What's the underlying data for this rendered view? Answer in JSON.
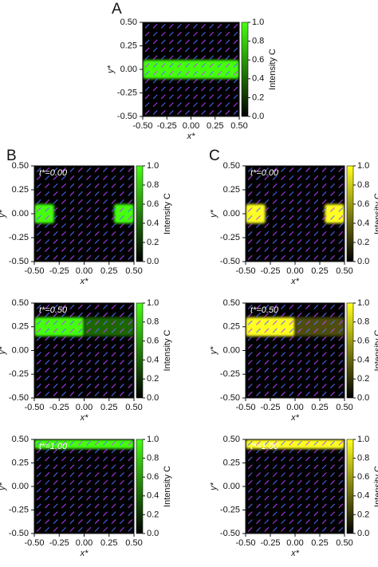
{
  "chart_data": [
    {
      "type": "heatmap",
      "panel_label": "A",
      "xlabel": "x*",
      "ylabel": "y*",
      "colorbar_label": "Intensity C",
      "colormap": [
        "#000000",
        "#44ff10"
      ],
      "xlim": [
        -0.5,
        0.5
      ],
      "ylim": [
        -0.5,
        0.5
      ],
      "clim": [
        0,
        1
      ],
      "xticks": [
        {
          "value": -0.5,
          "label": "-0.50"
        },
        {
          "value": -0.25,
          "label": "-0.25"
        },
        {
          "value": 0,
          "label": "0.00"
        },
        {
          "value": 0.25,
          "label": "0.25"
        },
        {
          "value": 0.5,
          "label": "0.50"
        }
      ],
      "yticks": [
        {
          "value": -0.5,
          "label": "-0.50"
        },
        {
          "value": -0.25,
          "label": "-0.25"
        },
        {
          "value": 0,
          "label": "0.00"
        },
        {
          "value": 0.25,
          "label": "0.25"
        },
        {
          "value": 0.5,
          "label": "0.50"
        }
      ],
      "cticks": [
        {
          "value": 0,
          "label": "0.0"
        },
        {
          "value": 0.2,
          "label": "0.2"
        },
        {
          "value": 0.4,
          "label": "0.4"
        },
        {
          "value": 0.6,
          "label": "0.6"
        },
        {
          "value": 0.8,
          "label": "0.8"
        },
        {
          "value": 1,
          "label": "1.0"
        }
      ],
      "regions": [
        {
          "x": [
            -0.5,
            0.5
          ],
          "y": [
            -0.1,
            0.1
          ],
          "value": 1
        }
      ]
    },
    {
      "type": "heatmap",
      "panel_label": "B",
      "title": "t*=0.00",
      "xlabel": "x*",
      "ylabel": "y*",
      "colorbar_label": "Intensity C",
      "colormap": [
        "#000000",
        "#44ff10"
      ],
      "xlim": [
        -0.5,
        0.5
      ],
      "ylim": [
        -0.5,
        0.5
      ],
      "clim": [
        0,
        1
      ],
      "xticks": [
        {
          "value": -0.5,
          "label": "-0.50"
        },
        {
          "value": -0.25,
          "label": "-0.25"
        },
        {
          "value": 0,
          "label": "0.00"
        },
        {
          "value": 0.25,
          "label": "0.25"
        },
        {
          "value": 0.5,
          "label": "0.50"
        }
      ],
      "yticks": [
        {
          "value": -0.5,
          "label": "-0.50"
        },
        {
          "value": -0.25,
          "label": "-0.25"
        },
        {
          "value": 0,
          "label": "0.00"
        },
        {
          "value": 0.25,
          "label": "0.25"
        },
        {
          "value": 0.5,
          "label": "0.50"
        }
      ],
      "cticks": [
        {
          "value": 0,
          "label": "0.0"
        },
        {
          "value": 0.2,
          "label": "0.2"
        },
        {
          "value": 0.4,
          "label": "0.4"
        },
        {
          "value": 0.6,
          "label": "0.6"
        },
        {
          "value": 0.8,
          "label": "0.8"
        },
        {
          "value": 1,
          "label": "1.0"
        }
      ],
      "regions": [
        {
          "x": [
            -0.5,
            -0.3
          ],
          "y": [
            -0.1,
            0.1
          ],
          "value": 1
        },
        {
          "x": [
            0.3,
            0.5
          ],
          "y": [
            -0.1,
            0.1
          ],
          "value": 1
        }
      ]
    },
    {
      "type": "heatmap",
      "title": "t*=0.50",
      "xlabel": "x*",
      "ylabel": "y*",
      "colorbar_label": "Intensity C",
      "colormap": [
        "#000000",
        "#44ff10"
      ],
      "xlim": [
        -0.5,
        0.5
      ],
      "ylim": [
        -0.5,
        0.5
      ],
      "clim": [
        0,
        1
      ],
      "xticks": [
        {
          "value": -0.5,
          "label": "-0.50"
        },
        {
          "value": -0.25,
          "label": "-0.25"
        },
        {
          "value": 0,
          "label": "0.00"
        },
        {
          "value": 0.25,
          "label": "0.25"
        },
        {
          "value": 0.5,
          "label": "0.50"
        }
      ],
      "yticks": [
        {
          "value": -0.5,
          "label": "-0.50"
        },
        {
          "value": -0.25,
          "label": "-0.25"
        },
        {
          "value": 0,
          "label": "0.00"
        },
        {
          "value": 0.25,
          "label": "0.25"
        },
        {
          "value": 0.5,
          "label": "0.50"
        }
      ],
      "cticks": [
        {
          "value": 0,
          "label": "0.0"
        },
        {
          "value": 0.2,
          "label": "0.2"
        },
        {
          "value": 0.4,
          "label": "0.4"
        },
        {
          "value": 0.6,
          "label": "0.6"
        },
        {
          "value": 0.8,
          "label": "0.8"
        },
        {
          "value": 1,
          "label": "1.0"
        }
      ],
      "regions": [
        {
          "x": [
            -0.5,
            0
          ],
          "y": [
            0.15,
            0.35
          ],
          "value": 1
        },
        {
          "x": [
            0,
            0.5
          ],
          "y": [
            0.15,
            0.35
          ],
          "value": 0.4
        }
      ]
    },
    {
      "type": "heatmap",
      "title": "t*=1.00",
      "xlabel": "x*",
      "ylabel": "y*",
      "colorbar_label": "Intensity C",
      "colormap": [
        "#000000",
        "#44ff10"
      ],
      "xlim": [
        -0.5,
        0.5
      ],
      "ylim": [
        -0.5,
        0.5
      ],
      "clim": [
        0,
        1
      ],
      "xticks": [
        {
          "value": -0.5,
          "label": "-0.50"
        },
        {
          "value": -0.25,
          "label": "-0.25"
        },
        {
          "value": 0,
          "label": "0.00"
        },
        {
          "value": 0.25,
          "label": "0.25"
        },
        {
          "value": 0.5,
          "label": "0.50"
        }
      ],
      "yticks": [
        {
          "value": -0.5,
          "label": "-0.50"
        },
        {
          "value": -0.25,
          "label": "-0.25"
        },
        {
          "value": 0,
          "label": "0.00"
        },
        {
          "value": 0.25,
          "label": "0.25"
        },
        {
          "value": 0.5,
          "label": "0.50"
        }
      ],
      "cticks": [
        {
          "value": 0,
          "label": "0.0"
        },
        {
          "value": 0.2,
          "label": "0.2"
        },
        {
          "value": 0.4,
          "label": "0.4"
        },
        {
          "value": 0.6,
          "label": "0.6"
        },
        {
          "value": 0.8,
          "label": "0.8"
        },
        {
          "value": 1,
          "label": "1.0"
        }
      ],
      "regions": [
        {
          "x": [
            -0.5,
            0.5
          ],
          "y": [
            0.4,
            0.5
          ],
          "value": 1
        }
      ]
    },
    {
      "type": "heatmap",
      "panel_label": "C",
      "title": "t*=0.00",
      "xlabel": "x*",
      "ylabel": "y*",
      "colorbar_label": "Intensity C",
      "colormap": [
        "#000000",
        "#ffff20"
      ],
      "xlim": [
        -0.5,
        0.5
      ],
      "ylim": [
        -0.5,
        0.5
      ],
      "clim": [
        0,
        1
      ],
      "xticks": [
        {
          "value": -0.5,
          "label": "-0.50"
        },
        {
          "value": -0.25,
          "label": "-0.25"
        },
        {
          "value": 0,
          "label": "0.00"
        },
        {
          "value": 0.25,
          "label": "0.25"
        },
        {
          "value": 0.5,
          "label": "0.50"
        }
      ],
      "yticks": [
        {
          "value": -0.5,
          "label": "-0.50"
        },
        {
          "value": -0.25,
          "label": "-0.25"
        },
        {
          "value": 0,
          "label": "0.00"
        },
        {
          "value": 0.25,
          "label": "0.25"
        },
        {
          "value": 0.5,
          "label": "0.50"
        }
      ],
      "cticks": [
        {
          "value": 0,
          "label": "0.0"
        },
        {
          "value": 0.2,
          "label": "0.2"
        },
        {
          "value": 0.4,
          "label": "0.4"
        },
        {
          "value": 0.6,
          "label": "0.6"
        },
        {
          "value": 0.8,
          "label": "0.8"
        },
        {
          "value": 1,
          "label": "1.0"
        }
      ],
      "regions": [
        {
          "x": [
            -0.5,
            -0.3
          ],
          "y": [
            -0.1,
            0.1
          ],
          "value": 1
        },
        {
          "x": [
            0.3,
            0.5
          ],
          "y": [
            -0.1,
            0.1
          ],
          "value": 1
        }
      ]
    },
    {
      "type": "heatmap",
      "title": "t*=0.50",
      "xlabel": "x*",
      "ylabel": "y*",
      "colorbar_label": "Intensity C",
      "colormap": [
        "#000000",
        "#ffff20"
      ],
      "xlim": [
        -0.5,
        0.5
      ],
      "ylim": [
        -0.5,
        0.5
      ],
      "clim": [
        0,
        1
      ],
      "xticks": [
        {
          "value": -0.5,
          "label": "-0.50"
        },
        {
          "value": -0.25,
          "label": "-0.25"
        },
        {
          "value": 0,
          "label": "0.00"
        },
        {
          "value": 0.25,
          "label": "0.25"
        },
        {
          "value": 0.5,
          "label": "0.50"
        }
      ],
      "yticks": [
        {
          "value": -0.5,
          "label": "-0.50"
        },
        {
          "value": -0.25,
          "label": "-0.25"
        },
        {
          "value": 0,
          "label": "0.00"
        },
        {
          "value": 0.25,
          "label": "0.25"
        },
        {
          "value": 0.5,
          "label": "0.50"
        }
      ],
      "cticks": [
        {
          "value": 0,
          "label": "0.0"
        },
        {
          "value": 0.2,
          "label": "0.2"
        },
        {
          "value": 0.4,
          "label": "0.4"
        },
        {
          "value": 0.6,
          "label": "0.6"
        },
        {
          "value": 0.8,
          "label": "0.8"
        },
        {
          "value": 1,
          "label": "1.0"
        }
      ],
      "regions": [
        {
          "x": [
            -0.5,
            0
          ],
          "y": [
            0.15,
            0.35
          ],
          "value": 1
        },
        {
          "x": [
            0,
            0.5
          ],
          "y": [
            0.15,
            0.35
          ],
          "value": 0.3
        }
      ]
    },
    {
      "type": "heatmap",
      "title": "t*=1.00",
      "xlabel": "x*",
      "ylabel": "y*",
      "colorbar_label": "Intensity C",
      "colormap": [
        "#000000",
        "#ffff20"
      ],
      "xlim": [
        -0.5,
        0.5
      ],
      "ylim": [
        -0.5,
        0.5
      ],
      "clim": [
        0,
        1
      ],
      "xticks": [
        {
          "value": -0.5,
          "label": "-0.50"
        },
        {
          "value": -0.25,
          "label": "-0.25"
        },
        {
          "value": 0,
          "label": "0.00"
        },
        {
          "value": 0.25,
          "label": "0.25"
        },
        {
          "value": 0.5,
          "label": "0.50"
        }
      ],
      "yticks": [
        {
          "value": -0.5,
          "label": "-0.50"
        },
        {
          "value": -0.25,
          "label": "-0.25"
        },
        {
          "value": 0,
          "label": "0.00"
        },
        {
          "value": 0.25,
          "label": "0.25"
        },
        {
          "value": 0.5,
          "label": "0.50"
        }
      ],
      "cticks": [
        {
          "value": 0,
          "label": "0.0"
        },
        {
          "value": 0.2,
          "label": "0.2"
        },
        {
          "value": 0.4,
          "label": "0.4"
        },
        {
          "value": 0.6,
          "label": "0.6"
        },
        {
          "value": 0.8,
          "label": "0.8"
        },
        {
          "value": 1,
          "label": "1.0"
        }
      ],
      "regions": [
        {
          "x": [
            -0.5,
            0.5
          ],
          "y": [
            0.4,
            0.5
          ],
          "value": 1
        }
      ]
    }
  ]
}
